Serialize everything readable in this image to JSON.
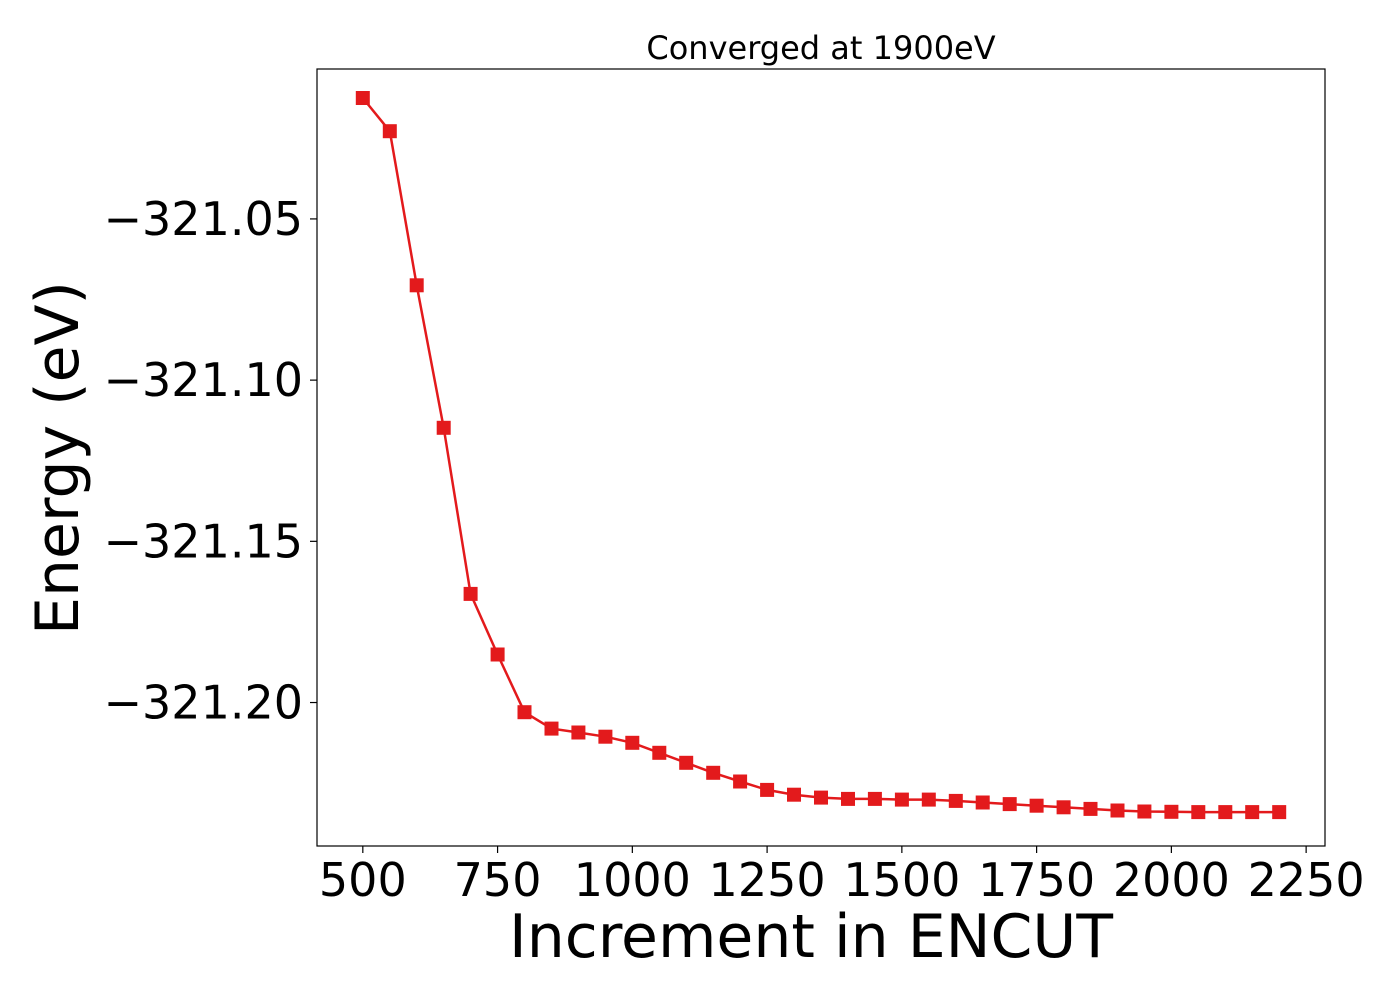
{
  "chart_data": {
    "type": "line",
    "title": "Converged at 1900eV",
    "xlabel": "Increment in ENCUT",
    "ylabel": "Energy (eV)",
    "xlim": [
      415,
      2285
    ],
    "ylim": [
      -321.2445,
      -321.0035
    ],
    "xticks": [
      500,
      750,
      1000,
      1250,
      1500,
      1750,
      2000,
      2250
    ],
    "xtick_labels": [
      "500",
      "750",
      "1000",
      "1250",
      "1500",
      "1750",
      "2000",
      "2250"
    ],
    "yticks": [
      -321.05,
      -321.1,
      -321.15,
      -321.2
    ],
    "ytick_labels": [
      "−321.05",
      "−321.10",
      "−321.15",
      "−321.20"
    ],
    "grid": false,
    "series": [
      {
        "color": "#e31a1c",
        "marker": "square",
        "x": [
          500,
          550,
          600,
          650,
          700,
          750,
          800,
          850,
          900,
          950,
          1000,
          1050,
          1100,
          1150,
          1200,
          1250,
          1300,
          1350,
          1400,
          1450,
          1500,
          1550,
          1600,
          1650,
          1700,
          1750,
          1800,
          1850,
          1900,
          1950,
          2000,
          2050,
          2100,
          2150,
          2200
        ],
        "y": [
          -321.0125,
          -321.0228,
          -321.0706,
          -321.1148,
          -321.1663,
          -321.1851,
          -321.203,
          -321.2081,
          -321.2093,
          -321.2106,
          -321.2125,
          -321.2156,
          -321.2187,
          -321.2218,
          -321.2245,
          -321.2271,
          -321.2286,
          -321.2295,
          -321.2299,
          -321.2299,
          -321.2301,
          -321.2301,
          -321.2305,
          -321.231,
          -321.2315,
          -321.232,
          -321.2325,
          -321.233,
          -321.2335,
          -321.2338,
          -321.2339,
          -321.234,
          -321.234,
          -321.234,
          -321.234
        ]
      }
    ]
  }
}
